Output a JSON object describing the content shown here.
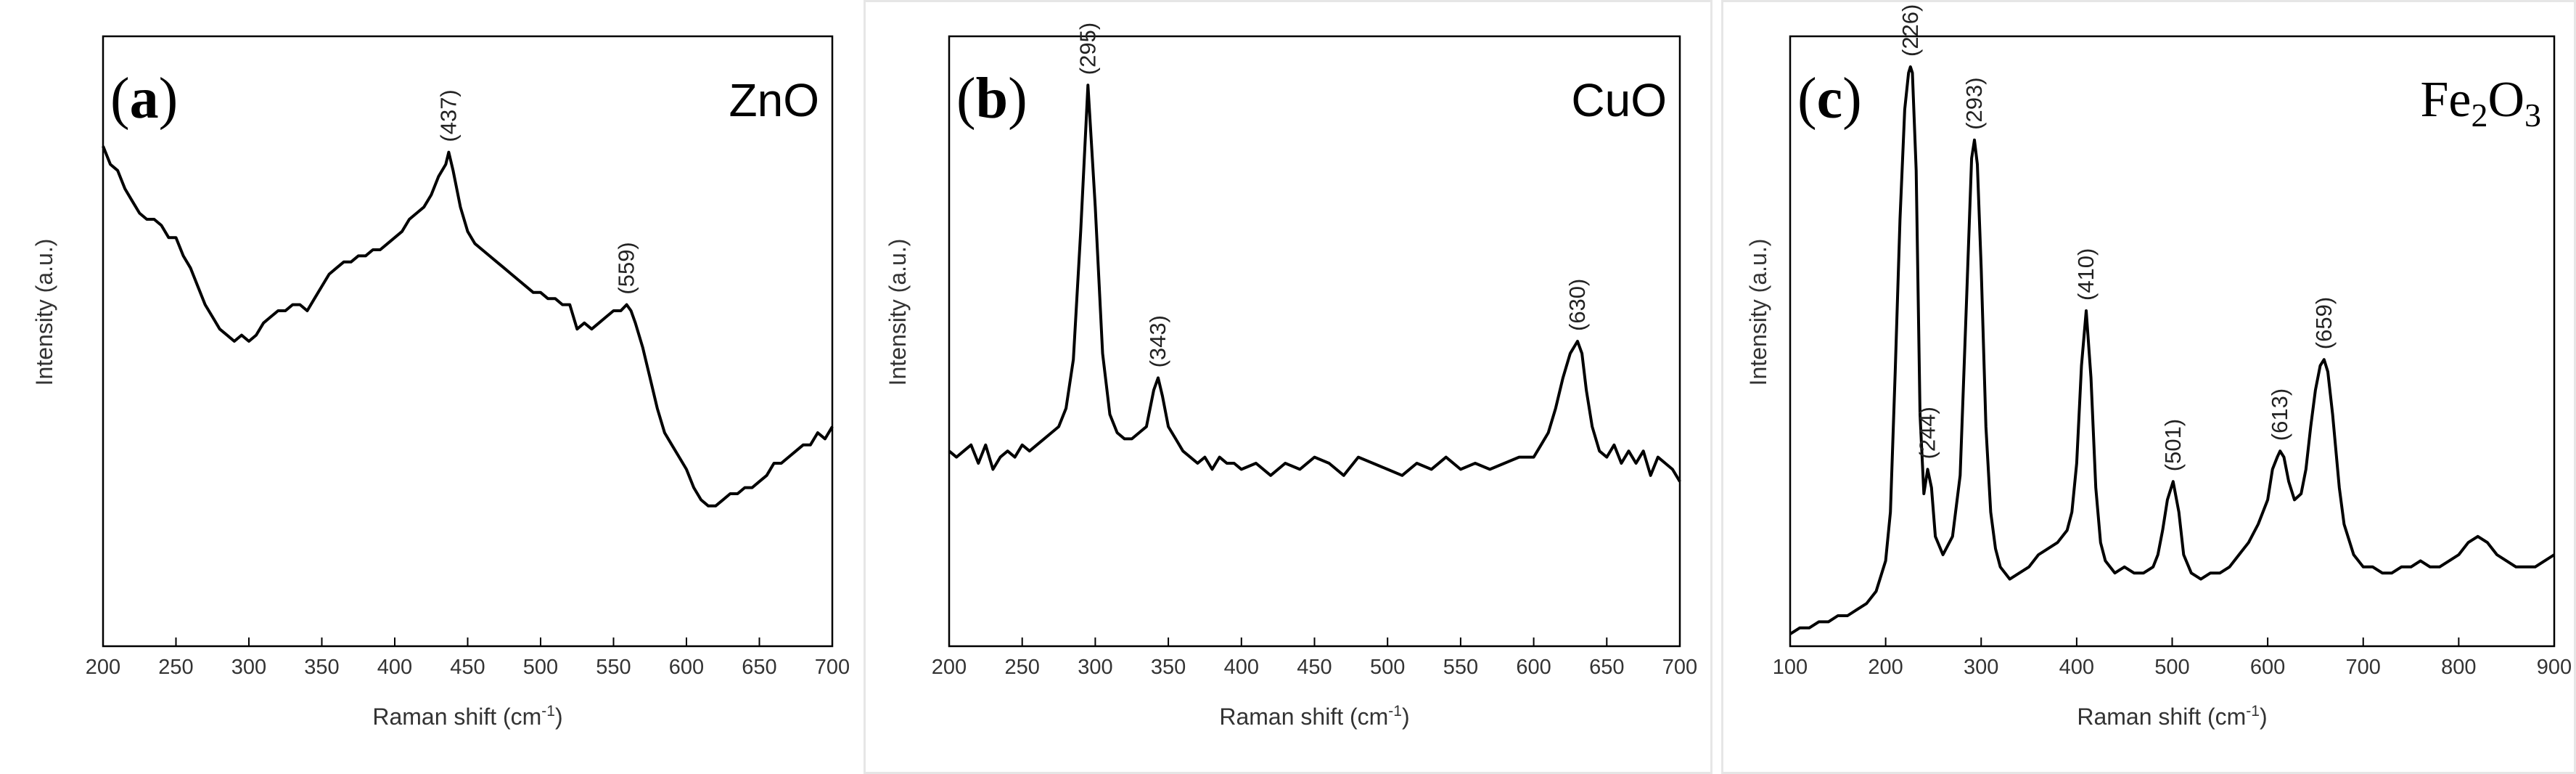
{
  "chart_data": [
    {
      "type": "line",
      "panel_label": "(a)",
      "panel_letter": "a",
      "compound": "ZnO",
      "xlabel": "Raman shift (cm⁻¹)",
      "xlabel_main": "Raman shift (cm",
      "xlabel_sup": "-1",
      "xlabel_end": ")",
      "ylabel": "Intensity (a.u.)",
      "xlim": [
        200,
        700
      ],
      "ylim": [
        0,
        100
      ],
      "xticks": [
        "200",
        "250",
        "300",
        "350",
        "400",
        "450",
        "500",
        "550",
        "600",
        "650",
        "700"
      ],
      "series": [
        {
          "name": "ZnO",
          "x": [
            200,
            205,
            210,
            215,
            220,
            225,
            230,
            235,
            240,
            245,
            250,
            255,
            260,
            265,
            270,
            275,
            280,
            285,
            290,
            295,
            300,
            305,
            310,
            315,
            320,
            325,
            330,
            335,
            340,
            345,
            350,
            355,
            360,
            365,
            370,
            375,
            380,
            385,
            390,
            395,
            400,
            405,
            410,
            415,
            420,
            425,
            430,
            435,
            437,
            440,
            445,
            450,
            455,
            460,
            465,
            470,
            475,
            480,
            485,
            490,
            495,
            500,
            505,
            510,
            515,
            520,
            525,
            530,
            535,
            540,
            545,
            550,
            555,
            559,
            562,
            565,
            570,
            575,
            580,
            585,
            590,
            595,
            600,
            605,
            610,
            615,
            620,
            625,
            630,
            635,
            640,
            645,
            650,
            655,
            660,
            665,
            670,
            675,
            680,
            685,
            690,
            695,
            700
          ],
          "y": [
            82,
            79,
            78,
            75,
            73,
            71,
            70,
            70,
            69,
            67,
            67,
            64,
            62,
            59,
            56,
            54,
            52,
            51,
            50,
            51,
            50,
            51,
            53,
            54,
            55,
            55,
            56,
            56,
            55,
            57,
            59,
            61,
            62,
            63,
            63,
            64,
            64,
            65,
            65,
            66,
            67,
            68,
            70,
            71,
            72,
            74,
            77,
            79,
            81,
            78,
            72,
            68,
            66,
            65,
            64,
            63,
            62,
            61,
            60,
            59,
            58,
            58,
            57,
            57,
            56,
            56,
            52,
            53,
            52,
            53,
            54,
            55,
            55,
            56,
            55,
            53,
            49,
            44,
            39,
            35,
            33,
            31,
            29,
            26,
            24,
            23,
            23,
            24,
            25,
            25,
            26,
            26,
            27,
            28,
            30,
            30,
            31,
            32,
            33,
            33,
            35,
            34,
            36
          ]
        }
      ],
      "annotations": [
        {
          "text": "(437)",
          "x": 437,
          "y": 81
        },
        {
          "text": "(559)",
          "x": 559,
          "y": 56
        }
      ]
    },
    {
      "type": "line",
      "panel_label": "(b)",
      "panel_letter": "b",
      "compound": "CuO",
      "xlabel": "Raman shift (cm⁻¹)",
      "xlabel_main": "Raman shift (cm",
      "xlabel_sup": "-1",
      "xlabel_end": ")",
      "ylabel": "Intensity (a.u.)",
      "xlim": [
        200,
        700
      ],
      "ylim": [
        0,
        100
      ],
      "xticks": [
        "200",
        "250",
        "300",
        "350",
        "400",
        "450",
        "500",
        "550",
        "600",
        "650",
        "700"
      ],
      "series": [
        {
          "name": "CuO",
          "x": [
            200,
            205,
            210,
            215,
            220,
            225,
            230,
            235,
            240,
            245,
            250,
            255,
            260,
            265,
            270,
            275,
            280,
            285,
            290,
            295,
            300,
            305,
            310,
            315,
            320,
            325,
            330,
            335,
            340,
            343,
            346,
            350,
            355,
            360,
            365,
            370,
            375,
            380,
            385,
            390,
            395,
            400,
            410,
            420,
            430,
            440,
            450,
            460,
            470,
            480,
            490,
            500,
            510,
            520,
            530,
            540,
            550,
            560,
            570,
            580,
            590,
            600,
            605,
            610,
            615,
            620,
            625,
            630,
            633,
            636,
            640,
            645,
            650,
            655,
            660,
            665,
            670,
            675,
            680,
            685,
            690,
            695,
            700
          ],
          "y": [
            32,
            31,
            32,
            33,
            30,
            33,
            29,
            31,
            32,
            31,
            33,
            32,
            33,
            34,
            35,
            36,
            39,
            47,
            68,
            92,
            72,
            48,
            38,
            35,
            34,
            34,
            35,
            36,
            42,
            44,
            41,
            36,
            34,
            32,
            31,
            30,
            31,
            29,
            31,
            30,
            30,
            29,
            30,
            28,
            30,
            29,
            31,
            30,
            28,
            31,
            30,
            29,
            28,
            30,
            29,
            31,
            29,
            30,
            29,
            30,
            31,
            31,
            33,
            35,
            39,
            44,
            48,
            50,
            48,
            42,
            36,
            32,
            31,
            33,
            30,
            32,
            30,
            32,
            28,
            31,
            30,
            29,
            27
          ]
        }
      ],
      "annotations": [
        {
          "text": "(295)",
          "x": 295,
          "y": 92
        },
        {
          "text": "(343)",
          "x": 343,
          "y": 44
        },
        {
          "text": "(630)",
          "x": 630,
          "y": 50
        }
      ]
    },
    {
      "type": "line",
      "panel_label": "(c)",
      "panel_letter": "c",
      "compound": "Fe₂O₃",
      "compound_parts": [
        "Fe",
        "2",
        "O",
        "3"
      ],
      "xlabel": "Raman shift (cm⁻¹)",
      "xlabel_main": "Raman shift (cm",
      "xlabel_sup": "-1",
      "xlabel_end": ")",
      "ylabel": "Intensity (a.u.)",
      "xlim": [
        100,
        900
      ],
      "ylim": [
        0,
        100
      ],
      "xticks": [
        "100",
        "200",
        "300",
        "400",
        "500",
        "600",
        "700",
        "800",
        "900"
      ],
      "series": [
        {
          "name": "Fe2O3",
          "x": [
            100,
            110,
            120,
            130,
            140,
            150,
            160,
            170,
            180,
            190,
            200,
            205,
            210,
            215,
            220,
            224,
            226,
            228,
            232,
            236,
            240,
            244,
            248,
            252,
            260,
            270,
            278,
            285,
            290,
            293,
            296,
            300,
            305,
            310,
            315,
            320,
            330,
            340,
            350,
            360,
            370,
            380,
            390,
            395,
            400,
            405,
            410,
            415,
            420,
            425,
            430,
            440,
            450,
            460,
            470,
            480,
            485,
            490,
            495,
            501,
            507,
            512,
            520,
            530,
            540,
            550,
            560,
            570,
            580,
            590,
            600,
            605,
            610,
            613,
            617,
            622,
            628,
            635,
            640,
            645,
            650,
            655,
            659,
            663,
            668,
            675,
            680,
            690,
            700,
            710,
            720,
            730,
            740,
            750,
            760,
            770,
            780,
            790,
            800,
            810,
            820,
            830,
            840,
            850,
            860,
            870,
            880,
            890,
            900
          ],
          "y": [
            2,
            3,
            3,
            4,
            4,
            5,
            5,
            6,
            7,
            9,
            14,
            22,
            45,
            70,
            88,
            94,
            95,
            94,
            78,
            38,
            25,
            29,
            26,
            18,
            15,
            18,
            28,
            58,
            80,
            83,
            79,
            62,
            36,
            22,
            16,
            13,
            11,
            12,
            13,
            15,
            16,
            17,
            19,
            22,
            30,
            46,
            55,
            44,
            26,
            17,
            14,
            12,
            13,
            12,
            12,
            13,
            15,
            19,
            24,
            27,
            22,
            15,
            12,
            11,
            12,
            12,
            13,
            15,
            17,
            20,
            24,
            29,
            31,
            32,
            31,
            27,
            24,
            25,
            29,
            36,
            42,
            46,
            47,
            45,
            38,
            26,
            20,
            15,
            13,
            13,
            12,
            12,
            13,
            13,
            14,
            13,
            13,
            14,
            15,
            17,
            18,
            17,
            15,
            14,
            13,
            13,
            13,
            14,
            15
          ]
        }
      ],
      "annotations": [
        {
          "text": "(226)",
          "x": 226,
          "y": 95
        },
        {
          "text": "(244)",
          "x": 244,
          "y": 29
        },
        {
          "text": "(293)",
          "x": 293,
          "y": 83
        },
        {
          "text": "(410)",
          "x": 410,
          "y": 55
        },
        {
          "text": "(501)",
          "x": 501,
          "y": 27
        },
        {
          "text": "(613)",
          "x": 613,
          "y": 32
        },
        {
          "text": "(659)",
          "x": 659,
          "y": 47
        }
      ]
    }
  ]
}
